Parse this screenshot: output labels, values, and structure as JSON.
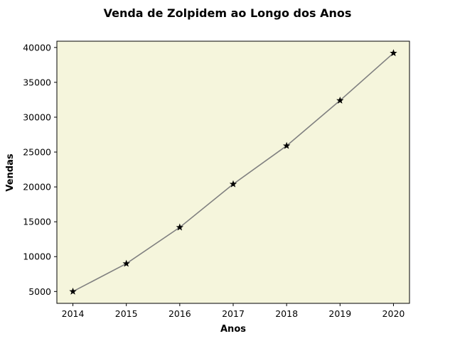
{
  "chart_data": {
    "type": "line",
    "title": "Venda de Zolpidem ao Longo dos Anos",
    "xlabel": "Anos",
    "ylabel": "Vendas",
    "x": [
      2014,
      2015,
      2016,
      2017,
      2018,
      2019,
      2020
    ],
    "series": [
      {
        "values": [
          5000,
          9000,
          14200,
          20400,
          25900,
          32400,
          39200
        ]
      }
    ],
    "xlim": [
      2013.7,
      2020.3
    ],
    "ylim": [
      3300,
      40900
    ],
    "yticks": [
      5000,
      10000,
      15000,
      20000,
      25000,
      30000,
      35000,
      40000
    ],
    "grid": false,
    "marker": "star",
    "colors": {
      "line": "#808080",
      "marker": "#000000",
      "plot_background": "#f5f5dc"
    }
  }
}
